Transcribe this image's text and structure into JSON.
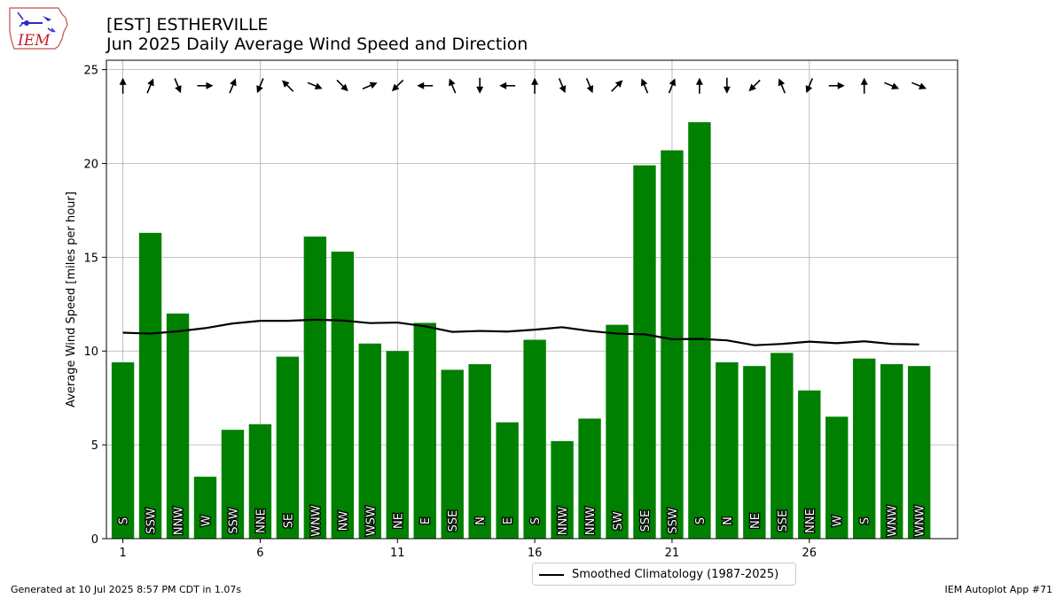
{
  "logo": {
    "text": "IEM"
  },
  "title_line1": "[EST] ESTHERVILLE",
  "title_line2": "Jun 2025 Daily Average Wind Speed and Direction",
  "footer_left": "Generated at 10 Jul 2025 8:57 PM CDT in 1.07s",
  "footer_right": "IEM Autoplot App #71",
  "legend_label": "Smoothed Climatology (1987-2025)",
  "colors": {
    "bar": "#008000",
    "climatology": "#000000",
    "grid": "#b0b0b0"
  },
  "chart_data": {
    "type": "bar",
    "ylabel": "Average Wind Speed [miles per hour]",
    "xlabel": "",
    "ylim": [
      0,
      25.5
    ],
    "xlim": [
      0.4,
      31.4
    ],
    "x_ticks": [
      1,
      6,
      11,
      16,
      21,
      26
    ],
    "y_ticks": [
      0,
      5,
      10,
      15,
      20,
      25
    ],
    "grid": true,
    "legend_position": "bottom-center",
    "days": [
      1,
      2,
      3,
      4,
      5,
      6,
      7,
      8,
      9,
      10,
      11,
      12,
      13,
      14,
      15,
      16,
      17,
      18,
      19,
      20,
      21,
      22,
      23,
      24,
      25,
      26,
      27,
      28,
      29,
      30
    ],
    "speeds": [
      9.4,
      16.3,
      12.0,
      3.3,
      5.8,
      6.1,
      9.7,
      16.1,
      15.3,
      10.4,
      10.0,
      11.5,
      9.0,
      9.3,
      6.2,
      10.6,
      5.2,
      6.4,
      11.4,
      19.9,
      20.7,
      22.2,
      9.4,
      9.2,
      9.9,
      7.9,
      6.5,
      9.6,
      9.3,
      9.2
    ],
    "directions": [
      "S",
      "SSW",
      "NNW",
      "W",
      "SSW",
      "NNE",
      "SE",
      "WNW",
      "NW",
      "WSW",
      "NE",
      "E",
      "SSE",
      "N",
      "E",
      "S",
      "NNW",
      "NNW",
      "SW",
      "SSE",
      "SSW",
      "S",
      "N",
      "NE",
      "SSE",
      "NNE",
      "W",
      "S",
      "WNW",
      "WNW"
    ],
    "climatology": [
      10.98,
      10.93,
      11.05,
      11.22,
      11.47,
      11.61,
      11.61,
      11.67,
      11.63,
      11.49,
      11.52,
      11.32,
      11.02,
      11.07,
      11.04,
      11.14,
      11.27,
      11.07,
      10.93,
      10.89,
      10.63,
      10.65,
      10.57,
      10.31,
      10.38,
      10.5,
      10.42,
      10.52,
      10.38,
      10.35
    ],
    "arrow_y": 24.0
  }
}
